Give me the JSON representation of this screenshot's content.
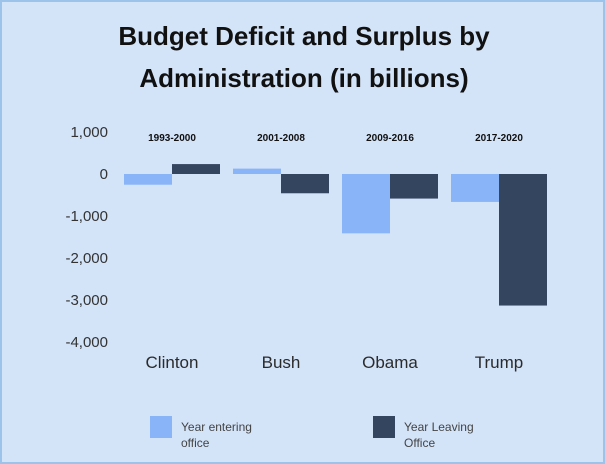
{
  "chart_data": {
    "type": "bar",
    "title_lines": [
      "Budget Deficit and Surplus by",
      "Administration (in billions)"
    ],
    "categories": [
      "Clinton",
      "Bush",
      "Obama",
      "Trump"
    ],
    "periods": [
      "1993-2000",
      "2001-2008",
      "2009-2016",
      "2017-2020"
    ],
    "series": [
      {
        "name": "Year entering office",
        "legend_lines": [
          "Year entering",
          "office"
        ],
        "values": [
          -255,
          128,
          -1413,
          -665
        ],
        "color": "#8ab4f8"
      },
      {
        "name": "Year Leaving Office",
        "legend_lines": [
          "Year Leaving",
          "Office"
        ],
        "values": [
          236,
          -459,
          -585,
          -3132
        ],
        "color": "#34455f"
      }
    ],
    "yticks": [
      1000,
      0,
      -1000,
      -2000,
      -3000,
      -4000
    ],
    "ytick_labels": [
      "1,000",
      "0",
      "-1,000",
      "-2,000",
      "-3,000",
      "-4,000"
    ],
    "ylim": [
      -4000,
      1000
    ],
    "grid": false,
    "legend_position": "bottom"
  }
}
